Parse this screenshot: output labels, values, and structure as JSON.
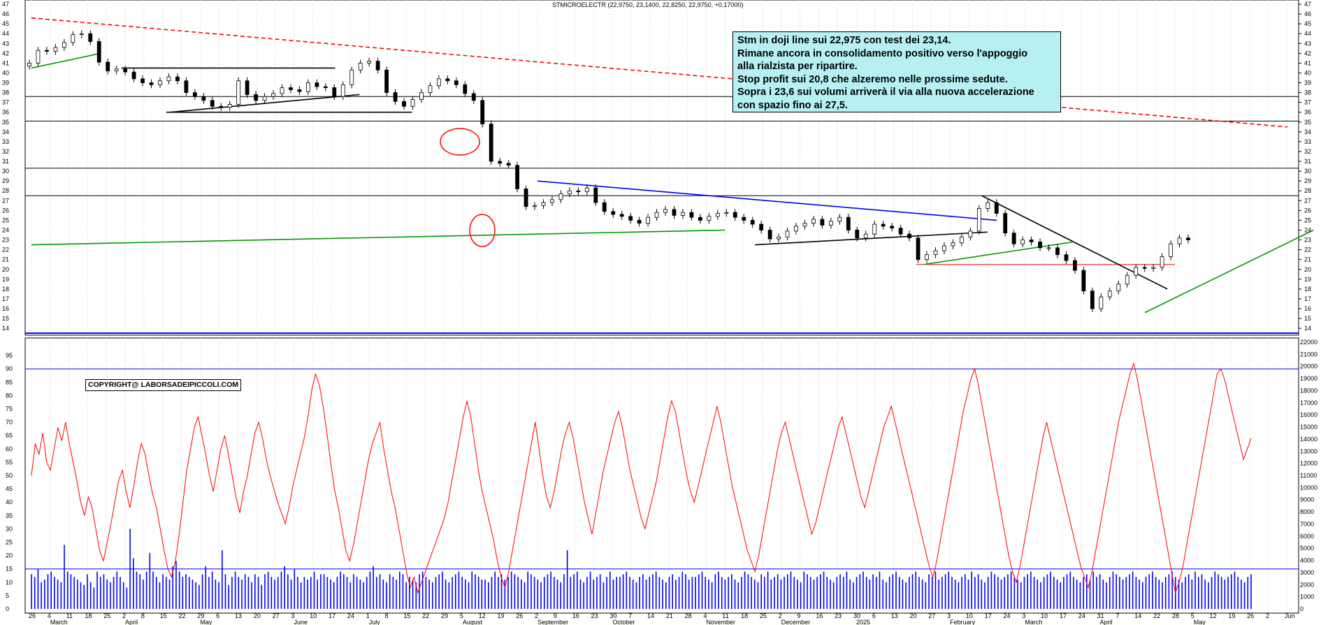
{
  "header": "STMICROELECTR (22,9750, 23,1400, 22,8250, 22,9750, +0,17000)",
  "annotation": {
    "lines": [
      "Stm in doji line sui 22,975  con test dei 23,14.",
      "Rimane ancora in consolidamento positivo verso l'appoggio",
      "alla rialzista per ripartire.",
      "Stop profit sui 20,8 che alzeremo nelle prossime sedute.",
      "Sopra i 23,6 sui volumi arriverà il via alla nuova accelerazione",
      "con spazio fino ai 27,5."
    ]
  },
  "copyright": "COPYRIGHT@ LABORSADEIPICCOLI.COM",
  "colors": {
    "candle": "#000000",
    "oscillator": "#ff0000",
    "volume": "#0000ff",
    "support": "#009900",
    "trend_down": "#ff0000",
    "grid": "#c8c8c8",
    "note_bg": "#b7f0f3"
  },
  "chart_data": [
    {
      "type": "candlestick",
      "title": "STMICROELECTR (22,9750, 23,1400, 22,8250, 22,9750, +0,17000)",
      "y_ticks": [
        14,
        15,
        16,
        17,
        18,
        19,
        20,
        21,
        22,
        23,
        24,
        25,
        26,
        27,
        28,
        29,
        30,
        31,
        32,
        33,
        34,
        35,
        36,
        37,
        38,
        39,
        40,
        41,
        42,
        43,
        44,
        45,
        46,
        47
      ],
      "ylim": [
        13.3,
        47
      ],
      "x_day_labels": [
        "26",
        "4",
        "11",
        "18",
        "25",
        "2",
        "8",
        "15",
        "22",
        "29",
        "6",
        "13",
        "20",
        "27",
        "3",
        "10",
        "17",
        "24",
        "1",
        "8",
        "15",
        "22",
        "29",
        "5",
        "12",
        "19",
        "26",
        "2",
        "9",
        "16",
        "23",
        "30",
        "7",
        "14",
        "21",
        "28",
        "4",
        "11",
        "18",
        "25",
        "2",
        "9",
        "16",
        "23",
        "30",
        "6",
        "13",
        "20",
        "27",
        "3",
        "10",
        "17",
        "24",
        "3",
        "10",
        "17",
        "24",
        "31",
        "7",
        "14",
        "22",
        "28",
        "5",
        "12",
        "19",
        "26",
        "2",
        "Jun"
      ],
      "x_month_labels": [
        {
          "label": "March",
          "at": 1
        },
        {
          "label": "April",
          "at": 5
        },
        {
          "label": "May",
          "at": 9
        },
        {
          "label": "June",
          "at": 14
        },
        {
          "label": "July",
          "at": 18
        },
        {
          "label": "August",
          "at": 23
        },
        {
          "label": "September",
          "at": 27
        },
        {
          "label": "October",
          "at": 31
        },
        {
          "label": "November",
          "at": 36
        },
        {
          "label": "December",
          "at": 40
        },
        {
          "label": "2025",
          "at": 44
        },
        {
          "label": "February",
          "at": 49
        },
        {
          "label": "March",
          "at": 53
        },
        {
          "label": "April",
          "at": 57
        },
        {
          "label": "May",
          "at": 62
        }
      ],
      "horizontal_levels": [
        {
          "y": 37.6,
          "color": "#000000"
        },
        {
          "y": 35.1,
          "color": "#000000"
        },
        {
          "y": 30.3,
          "color": "#000000"
        },
        {
          "y": 27.5,
          "color": "#000000"
        },
        {
          "y": 13.5,
          "color": "#0000ff"
        },
        {
          "y": 20.5,
          "color": "#ff0000",
          "from": 47.2,
          "to": 61.0
        }
      ],
      "trendlines": [
        {
          "from": [
            0.0,
            45.6
          ],
          "to": [
            67.0,
            34.5
          ],
          "color": "#ff0000",
          "dash": true
        },
        {
          "from": [
            0.0,
            22.5
          ],
          "to": [
            37.0,
            24.0
          ],
          "color": "#009900"
        },
        {
          "from": [
            0.0,
            40.5
          ],
          "to": [
            3.7,
            42.0
          ],
          "color": "#009900"
        },
        {
          "from": [
            27.0,
            29.0
          ],
          "to": [
            51.5,
            25.0
          ],
          "color": "#0000ff"
        },
        {
          "from": [
            50.7,
            27.5
          ],
          "to": [
            60.6,
            18.0
          ],
          "color": "#000000"
        },
        {
          "from": [
            59.4,
            15.6
          ],
          "to": [
            68.4,
            24.0
          ],
          "color": "#009900"
        },
        {
          "from": [
            47.6,
            20.5
          ],
          "to": [
            55.6,
            22.8
          ],
          "color": "#009900"
        },
        {
          "from": [
            38.6,
            22.5
          ],
          "to": [
            51.0,
            23.8
          ],
          "color": "#000000"
        },
        {
          "from": [
            7.4,
            36.0
          ],
          "to": [
            17.5,
            37.8
          ],
          "color": "#000000"
        },
        {
          "from": [
            4.8,
            40.5
          ],
          "to": [
            16.2,
            40.5
          ],
          "color": "#000000"
        },
        {
          "from": [
            7.2,
            36.0
          ],
          "to": [
            20.3,
            36.0
          ],
          "color": "#000000"
        }
      ],
      "closes": [
        41.0,
        42.3,
        42.2,
        42.6,
        43.1,
        43.9,
        44.0,
        43.2,
        41.1,
        40.2,
        40.4,
        40.1,
        39.4,
        39.0,
        38.8,
        39.2,
        39.6,
        39.2,
        38.0,
        37.6,
        37.2,
        36.6,
        36.5,
        36.8,
        39.2,
        37.8,
        37.2,
        37.6,
        37.9,
        38.5,
        38.3,
        38.1,
        39.0,
        38.6,
        38.5,
        37.6,
        38.8,
        40.3,
        41.0,
        41.2,
        40.3,
        38.0,
        37.1,
        36.6,
        37.3,
        38.0,
        38.7,
        39.4,
        39.2,
        38.8,
        37.9,
        37.2,
        34.8,
        31.0,
        30.8,
        30.6,
        28.2,
        26.4,
        26.5,
        26.8,
        27.1,
        27.7,
        28.0,
        27.9,
        28.3,
        26.8,
        25.9,
        25.6,
        25.4,
        25.0,
        24.7,
        25.3,
        25.8,
        26.1,
        25.5,
        25.8,
        25.3,
        25.0,
        25.4,
        25.7,
        25.8,
        25.3,
        25.0,
        24.6,
        24.0,
        23.1,
        23.3,
        23.9,
        24.4,
        24.7,
        25.1,
        24.5,
        24.9,
        25.3,
        24.0,
        23.2,
        23.6,
        24.6,
        24.4,
        24.2,
        23.6,
        23.2,
        21.0,
        21.5,
        21.9,
        22.4,
        22.7,
        23.3,
        23.9,
        26.2,
        26.8,
        25.7,
        23.7,
        22.6,
        23.0,
        22.8,
        22.2,
        22.2,
        21.5,
        20.9,
        19.9,
        17.8,
        16.0,
        17.2,
        17.8,
        18.5,
        19.4,
        20.2,
        20.1,
        20.2,
        21.3,
        22.6,
        23.2,
        23.0
      ]
    },
    {
      "type": "bar+line",
      "series": [
        {
          "kind": "bar",
          "values": [
            13,
            12,
            15,
            10,
            11,
            13,
            14,
            12,
            11,
            10,
            24,
            14,
            13,
            12,
            11,
            10,
            9,
            13,
            10,
            8,
            14,
            12,
            13,
            11,
            10,
            12,
            14,
            12,
            10,
            8,
            30,
            19,
            14,
            13,
            11,
            14,
            21,
            14,
            12,
            10,
            13,
            12,
            11,
            16,
            18,
            14,
            12,
            13,
            12,
            11,
            10,
            9,
            13,
            16,
            12,
            14,
            11,
            10,
            22,
            13,
            9,
            12,
            14,
            12,
            11,
            13,
            12,
            10,
            13,
            12,
            9,
            13,
            14,
            12,
            11,
            12,
            14,
            16,
            13,
            11,
            15,
            12,
            10,
            12,
            11,
            12,
            14,
            11,
            13,
            13,
            12,
            11,
            10,
            12,
            14,
            13,
            12,
            10,
            13,
            12,
            11,
            10,
            12,
            14,
            16,
            12,
            13,
            11,
            10,
            13,
            12,
            11,
            14,
            13,
            10,
            12,
            11,
            10,
            13,
            14,
            12,
            11,
            10,
            12,
            13,
            14,
            11,
            10,
            12,
            13,
            14,
            12,
            11,
            10,
            14,
            13,
            12,
            11,
            11,
            10,
            12,
            14,
            12,
            13,
            11,
            12,
            14,
            13,
            12,
            11,
            10,
            14,
            13,
            12,
            11,
            10,
            12,
            13,
            14,
            12,
            11,
            10,
            13,
            22,
            12,
            13,
            14,
            11,
            10,
            12,
            14,
            11,
            12,
            13,
            10,
            12,
            14,
            11,
            12,
            12,
            13,
            14,
            12,
            11,
            10,
            12,
            13,
            11,
            12,
            13,
            14,
            12,
            11,
            10,
            12,
            13,
            11,
            12,
            14,
            13,
            11,
            12,
            12,
            13,
            14,
            12,
            11,
            10,
            13,
            14,
            12,
            11,
            12,
            13,
            11,
            10,
            12,
            14,
            13,
            12,
            11,
            10,
            13,
            12,
            14,
            11,
            12,
            13,
            11,
            12,
            13,
            14,
            12,
            11,
            10,
            14,
            13,
            12,
            11,
            12,
            13,
            14,
            12,
            11,
            10,
            12,
            13,
            12,
            14,
            11,
            10,
            12,
            13,
            14,
            12,
            11,
            13,
            12,
            14,
            11,
            10,
            12,
            13,
            14,
            12,
            11,
            10,
            12,
            13,
            14,
            12,
            11,
            10,
            13,
            12,
            14,
            11,
            12,
            13,
            14,
            12,
            11,
            10,
            12,
            13,
            11,
            14,
            12,
            13,
            11,
            10,
            12,
            14,
            13,
            12,
            11,
            12,
            13,
            14,
            12,
            11,
            10,
            12,
            13,
            14,
            12,
            11,
            10,
            12,
            13,
            14,
            12,
            11,
            10,
            12,
            13,
            14,
            12,
            11,
            10,
            12,
            13,
            11,
            14,
            12,
            13,
            11,
            10,
            12,
            14,
            13,
            12,
            11,
            12,
            13,
            14,
            12,
            11,
            10,
            12,
            13,
            14,
            12,
            11,
            10,
            12,
            13,
            14,
            12,
            11,
            10,
            12,
            13,
            11,
            14,
            12,
            13,
            11,
            10,
            12,
            14,
            13,
            12,
            11,
            12,
            13,
            14,
            12,
            11,
            10,
            12,
            13
          ]
        },
        {
          "kind": "line",
          "values": [
            50,
            62,
            58,
            66,
            55,
            52,
            60,
            68,
            63,
            70,
            62,
            55,
            48,
            40,
            35,
            42,
            38,
            30,
            22,
            18,
            25,
            32,
            40,
            48,
            52,
            44,
            38,
            46,
            55,
            62,
            58,
            50,
            43,
            38,
            30,
            22,
            15,
            12,
            18,
            28,
            40,
            52,
            60,
            68,
            72,
            65,
            58,
            50,
            44,
            52,
            60,
            65,
            58,
            50,
            42,
            36,
            44,
            50,
            58,
            66,
            70,
            64,
            56,
            50,
            45,
            40,
            36,
            32,
            38,
            46,
            52,
            58,
            64,
            72,
            82,
            88,
            84,
            76,
            66,
            55,
            45,
            38,
            30,
            22,
            18,
            24,
            32,
            40,
            48,
            56,
            62,
            66,
            70,
            60,
            52,
            44,
            38,
            30,
            22,
            14,
            8,
            12,
            6,
            10,
            14,
            18,
            22,
            26,
            30,
            34,
            40,
            48,
            56,
            64,
            72,
            78,
            72,
            62,
            52,
            44,
            38,
            32,
            26,
            18,
            12,
            8,
            14,
            22,
            30,
            38,
            46,
            54,
            62,
            70,
            60,
            50,
            42,
            38,
            44,
            52,
            60,
            66,
            70,
            64,
            56,
            48,
            40,
            34,
            28,
            36,
            44,
            52,
            58,
            64,
            70,
            74,
            68,
            60,
            52,
            46,
            40,
            34,
            30,
            36,
            42,
            48,
            56,
            64,
            72,
            78,
            74,
            66,
            58,
            50,
            44,
            40,
            46,
            52,
            58,
            64,
            70,
            76,
            70,
            62,
            54,
            46,
            40,
            34,
            28,
            22,
            18,
            14,
            20,
            28,
            36,
            44,
            52,
            60,
            66,
            70,
            64,
            58,
            52,
            46,
            40,
            34,
            28,
            32,
            38,
            44,
            50,
            56,
            62,
            68,
            72,
            66,
            60,
            54,
            48,
            42,
            38,
            44,
            50,
            56,
            62,
            68,
            72,
            76,
            70,
            64,
            58,
            52,
            46,
            40,
            34,
            28,
            22,
            16,
            12,
            18,
            26,
            34,
            42,
            50,
            58,
            66,
            74,
            80,
            86,
            90,
            84,
            76,
            68,
            60,
            52,
            44,
            36,
            28,
            20,
            14,
            10,
            16,
            24,
            32,
            40,
            48,
            56,
            64,
            70,
            64,
            58,
            52,
            46,
            40,
            34,
            28,
            22,
            16,
            12,
            8,
            14,
            22,
            30,
            38,
            46,
            54,
            62,
            70,
            76,
            82,
            88,
            92,
            86,
            78,
            70,
            62,
            54,
            46,
            38,
            30,
            22,
            14,
            6,
            10,
            16,
            24,
            32,
            40,
            48,
            56,
            64,
            72,
            80,
            88,
            90,
            86,
            80,
            74,
            68,
            62,
            56,
            60,
            64
          ]
        }
      ],
      "y_left_ticks": [
        0,
        5,
        10,
        15,
        20,
        25,
        30,
        35,
        40,
        45,
        50,
        55,
        60,
        65,
        70,
        75,
        80,
        85,
        90,
        95
      ],
      "y_right_ticks": [
        0,
        1000,
        2000,
        3000,
        4000,
        5000,
        6000,
        7000,
        8000,
        9000,
        10000,
        11000,
        12000,
        13000,
        14000,
        15000,
        16000,
        17000,
        18000,
        19000,
        20000,
        21000,
        22000
      ],
      "levels": [
        90,
        15
      ]
    }
  ]
}
